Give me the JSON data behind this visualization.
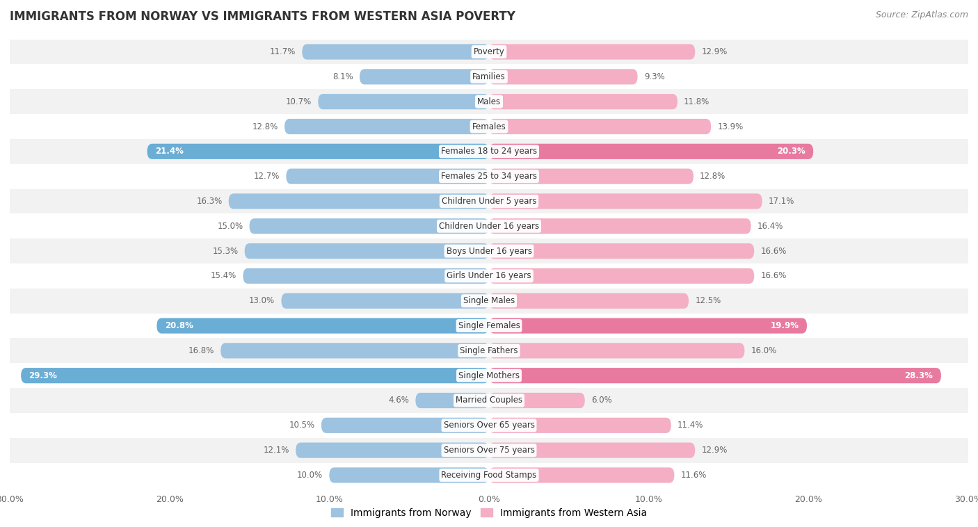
{
  "title": "IMMIGRANTS FROM NORWAY VS IMMIGRANTS FROM WESTERN ASIA POVERTY",
  "source": "Source: ZipAtlas.com",
  "categories": [
    "Poverty",
    "Families",
    "Males",
    "Females",
    "Females 18 to 24 years",
    "Females 25 to 34 years",
    "Children Under 5 years",
    "Children Under 16 years",
    "Boys Under 16 years",
    "Girls Under 16 years",
    "Single Males",
    "Single Females",
    "Single Fathers",
    "Single Mothers",
    "Married Couples",
    "Seniors Over 65 years",
    "Seniors Over 75 years",
    "Receiving Food Stamps"
  ],
  "norway_values": [
    11.7,
    8.1,
    10.7,
    12.8,
    21.4,
    12.7,
    16.3,
    15.0,
    15.3,
    15.4,
    13.0,
    20.8,
    16.8,
    29.3,
    4.6,
    10.5,
    12.1,
    10.0
  ],
  "western_asia_values": [
    12.9,
    9.3,
    11.8,
    13.9,
    20.3,
    12.8,
    17.1,
    16.4,
    16.6,
    16.6,
    12.5,
    19.9,
    16.0,
    28.3,
    6.0,
    11.4,
    12.9,
    11.6
  ],
  "norway_color": "#9dc3e0",
  "western_asia_color": "#f4afc5",
  "norway_highlight_indices": [
    4,
    11,
    13
  ],
  "western_asia_highlight_indices": [
    4,
    11,
    13
  ],
  "norway_highlight_color": "#6aadd5",
  "western_asia_highlight_color": "#e87aA0",
  "background_color": "#ffffff",
  "row_even_color": "#f2f2f2",
  "row_odd_color": "#ffffff",
  "xlim": 30.0,
  "bar_height": 0.62,
  "legend_label_norway": "Immigrants from Norway",
  "legend_label_western_asia": "Immigrants from Western Asia",
  "xaxis_ticks": [
    30.0,
    20.0,
    10.0,
    0.0,
    10.0,
    20.0,
    30.0
  ],
  "label_fontsize": 8.5,
  "title_fontsize": 12,
  "source_fontsize": 9
}
